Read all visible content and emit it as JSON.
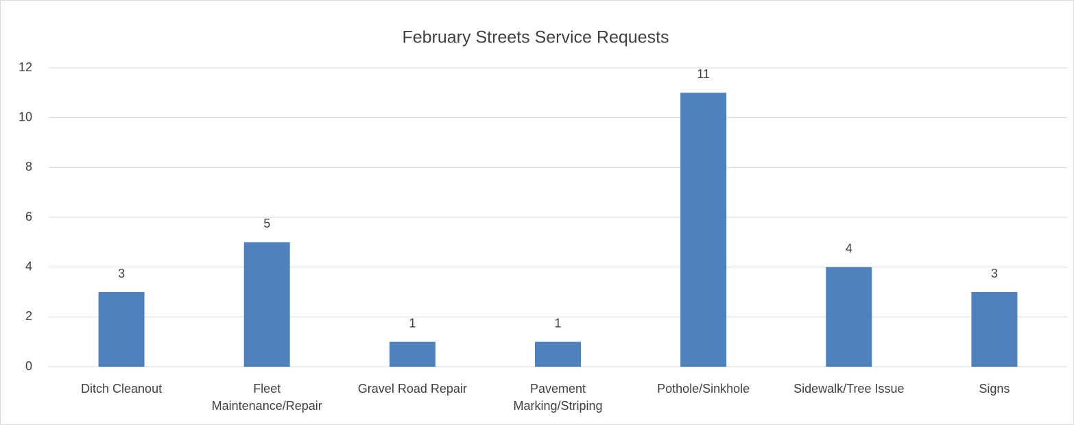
{
  "chart_data": {
    "type": "bar",
    "title": "February Streets Service Requests",
    "categories": [
      "Ditch Cleanout",
      "Fleet Maintenance/Repair",
      "Gravel Road Repair",
      "Pavement Marking/Striping",
      "Pothole/Sinkhole",
      "Sidewalk/Tree Issue",
      "Signs"
    ],
    "values": [
      3,
      5,
      1,
      1,
      11,
      4,
      3
    ],
    "color": "#4f81bd",
    "ylim": [
      0,
      12
    ],
    "yticks": [
      0,
      2,
      4,
      6,
      8,
      10,
      12
    ],
    "grid": true
  }
}
